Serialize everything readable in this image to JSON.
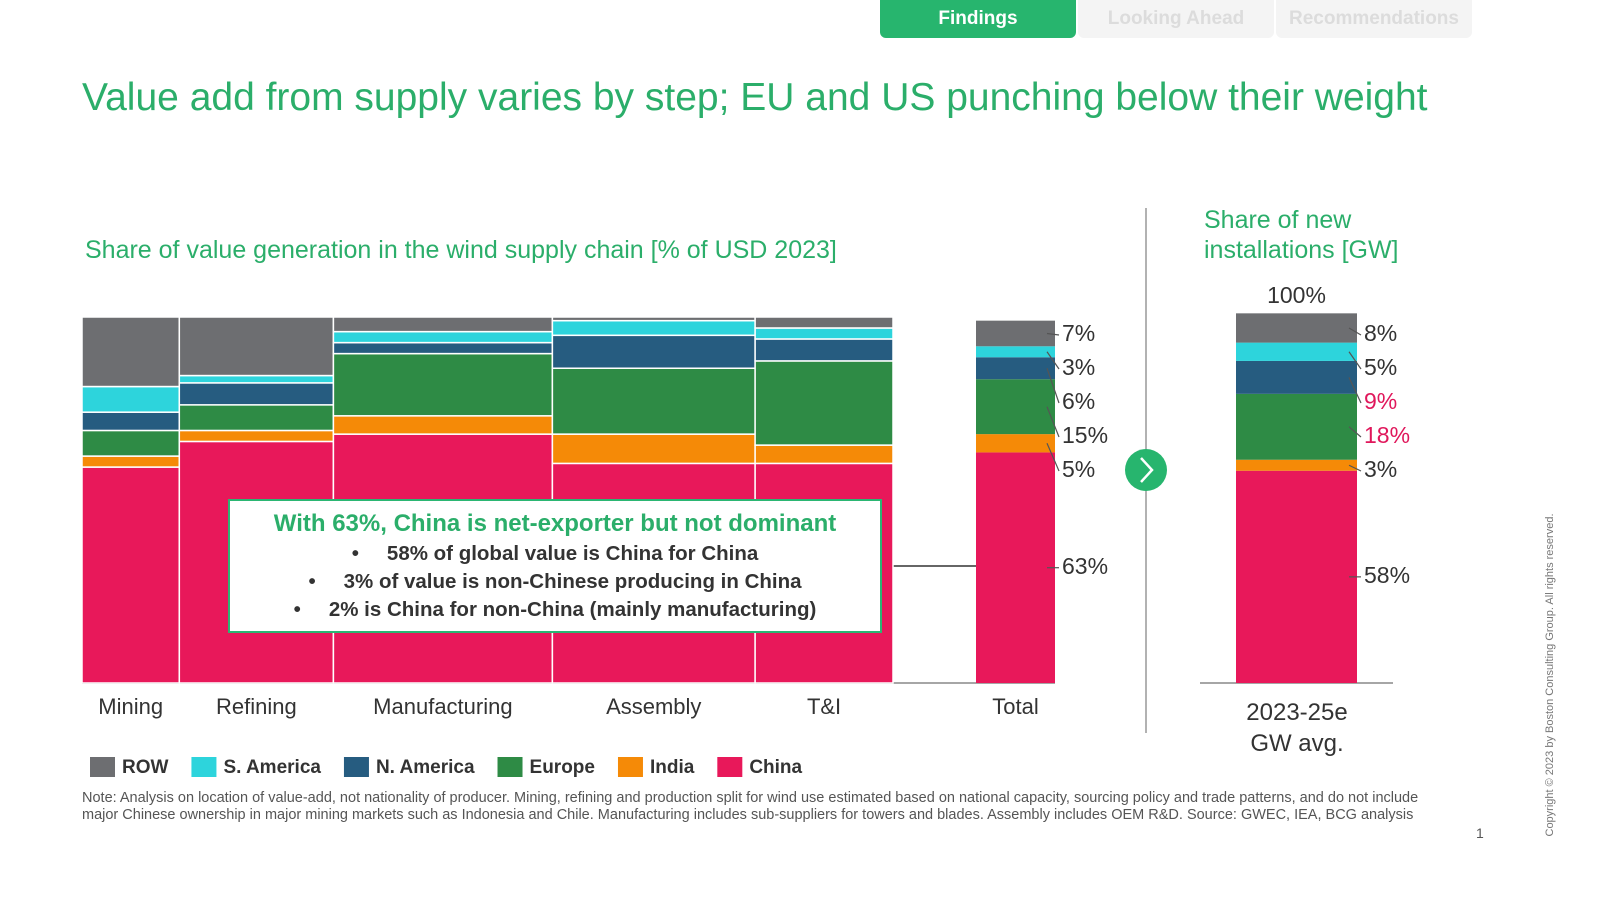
{
  "tabs": [
    "Findings",
    "Looking Ahead",
    "Recommendations"
  ],
  "headline": "Value add from supply varies by step; EU and US punching below their weight",
  "chart_data": [
    {
      "type": "marimekko",
      "title": "Share of value generation in the wind supply chain [% of USD 2023]",
      "categories": [
        "Mining",
        "Refining",
        "Manufacturing",
        "Assembly",
        "T&I"
      ],
      "widths": [
        12,
        19,
        27,
        25,
        17
      ],
      "ylim": [
        0,
        100
      ],
      "series": [
        {
          "name": "ROW",
          "color": "#6d6e71",
          "values": [
            19,
            16,
            4,
            1,
            3
          ]
        },
        {
          "name": "S. America",
          "color": "#2dd4dc",
          "values": [
            7,
            2,
            3,
            4,
            3
          ]
        },
        {
          "name": "N. America",
          "color": "#265c80",
          "values": [
            5,
            6,
            3,
            9,
            6
          ]
        },
        {
          "name": "Europe",
          "color": "#2e8b45",
          "values": [
            7,
            7,
            17,
            18,
            23
          ]
        },
        {
          "name": "India",
          "color": "#f58a07",
          "values": [
            3,
            3,
            5,
            8,
            5
          ]
        },
        {
          "name": "China",
          "color": "#e8185a",
          "values": [
            59,
            66,
            68,
            60,
            60
          ]
        }
      ]
    },
    {
      "type": "stacked_bar",
      "categories": [
        "Total"
      ],
      "ylim": [
        0,
        100
      ],
      "series": [
        {
          "name": "ROW",
          "color": "#6d6e71",
          "values": [
            7
          ],
          "value_labels": [
            "7%"
          ]
        },
        {
          "name": "S. America",
          "color": "#2dd4dc",
          "values": [
            3
          ],
          "value_labels": [
            "3%"
          ]
        },
        {
          "name": "N. America",
          "color": "#265c80",
          "values": [
            6
          ],
          "value_labels": [
            "6%"
          ]
        },
        {
          "name": "Europe",
          "color": "#2e8b45",
          "values": [
            15
          ],
          "value_labels": [
            "15%"
          ]
        },
        {
          "name": "India",
          "color": "#f58a07",
          "values": [
            5
          ],
          "value_labels": [
            "5%"
          ]
        },
        {
          "name": "China",
          "color": "#e8185a",
          "values": [
            63
          ],
          "value_labels": [
            "63%"
          ]
        }
      ]
    },
    {
      "type": "stacked_bar",
      "title": "Share of new installations [GW]",
      "categories": [
        "2023-25e GW avg."
      ],
      "ylim": [
        0,
        100
      ],
      "total": 100,
      "total_label": "100%",
      "series": [
        {
          "name": "ROW",
          "color": "#6d6e71",
          "values": [
            8
          ],
          "value_labels": [
            "8%"
          ],
          "label_color": "#333333"
        },
        {
          "name": "S. America",
          "color": "#2dd4dc",
          "values": [
            5
          ],
          "value_labels": [
            "5%"
          ],
          "label_color": "#333333"
        },
        {
          "name": "N. America",
          "color": "#265c80",
          "values": [
            9
          ],
          "value_labels": [
            "9%"
          ],
          "label_color": "#e0175b"
        },
        {
          "name": "Europe",
          "color": "#2e8b45",
          "values": [
            18
          ],
          "value_labels": [
            "18%"
          ],
          "label_color": "#e0175b"
        },
        {
          "name": "India",
          "color": "#f58a07",
          "values": [
            3
          ],
          "value_labels": [
            "3%"
          ],
          "label_color": "#333333"
        },
        {
          "name": "China",
          "color": "#e8185a",
          "values": [
            58
          ],
          "value_labels": [
            "58%"
          ],
          "label_color": "#333333"
        }
      ]
    }
  ],
  "callout": {
    "title": "With 63%, China is net-exporter but not dominant",
    "bullets": [
      "58% of global value is China for China",
      "3% of value is non-Chinese producing in China",
      "2% is China for non-China (mainly manufacturing)"
    ]
  },
  "note": "Note: Analysis on location of value-add, not nationality of producer. Mining, refining and production split for wind use estimated based on national capacity, sourcing policy and trade patterns, and do not include major Chinese ownership in major mining markets such as Indonesia and Chile. Manufacturing includes sub-suppliers for towers and blades. Assembly includes OEM R&D.  Source: GWEC, IEA, BCG analysis",
  "copyright": "Copyright © 2023 by Boston Consulting Group. All rights reserved.",
  "page_number": "1"
}
